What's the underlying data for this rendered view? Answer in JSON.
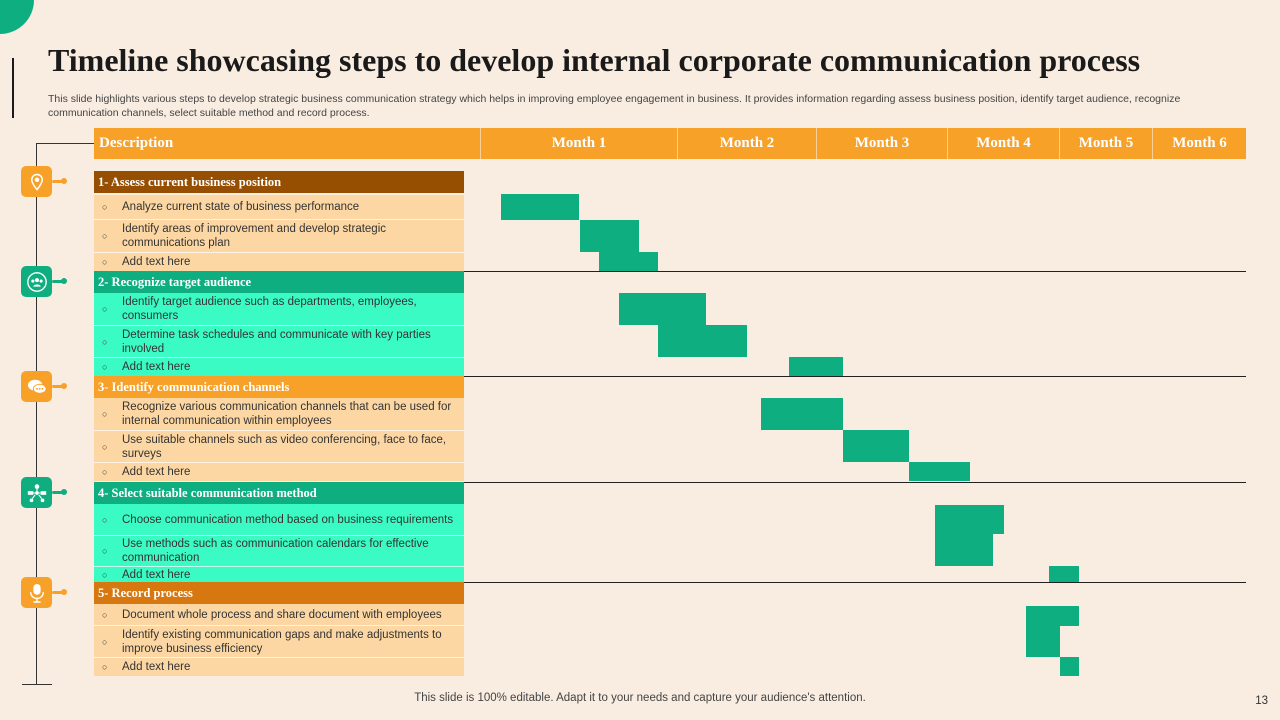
{
  "title": "Timeline showcasing steps to develop internal corporate communication process",
  "subtitle": "This slide highlights various steps to develop strategic business communication strategy which helps in improving employee engagement in business. It provides information regarding assess business position, identify target audience, recognize communication channels, select suitable method and record process.",
  "header": {
    "description": "Description",
    "months": [
      "Month 1",
      "Month 2",
      "Month 3",
      "Month 4",
      "Month 5",
      "Month 6"
    ]
  },
  "colors": {
    "accent_orange": "#F7A128",
    "accent_green": "#0FAE80",
    "background": "#F9EDE1"
  },
  "sections": [
    {
      "title": "1- Assess current business position",
      "head_color": "#964E00",
      "item_color": "#FDD7A3",
      "icon": "location-pin-icon",
      "items": [
        "Analyze  current state of business performance",
        "Identify areas of improvement and develop strategic communications plan",
        "Add text here"
      ]
    },
    {
      "title": "2- Recognize target audience",
      "head_color": "#0FAE80",
      "item_color": "#3BFBC4",
      "icon": "people-target-icon",
      "items": [
        "Identify target audience such as departments, employees, consumers",
        "Determine task schedules and communicate with key parties involved",
        "Add text here"
      ]
    },
    {
      "title": "3- Identify  communication  channels",
      "head_color": "#F7A128",
      "item_color": "#FDD7A3",
      "icon": "chat-bubbles-icon",
      "items": [
        "Recognize various communication channels that can be used for internal communication within employees",
        "Use suitable channels such as video conferencing, face to face, surveys",
        "Add text here"
      ]
    },
    {
      "title": "4- Select suitable  communication  method",
      "head_color": "#0FAE80",
      "item_color": "#3BFBC4",
      "icon": "network-people-icon",
      "items": [
        "Choose communication method based on business requirements",
        "Use methods such as communication calendars for effective communication",
        "Add text here"
      ]
    },
    {
      "title": "5- Record  process",
      "head_color": "#D7770F",
      "item_color": "#FDD7A3",
      "icon": "microphone-icon",
      "items": [
        "Document whole process and share document with employees",
        "Identify existing communication gaps and make adjustments to improve business efficiency",
        "Add text here"
      ]
    }
  ],
  "chart_data": {
    "type": "gantt",
    "title": "Timeline showcasing steps to develop internal corporate communication process",
    "xlabel": "Month",
    "categories": [
      "Month 1",
      "Month 2",
      "Month 3",
      "Month 4",
      "Month 5",
      "Month 6"
    ],
    "xlim": [
      0,
      6
    ],
    "tasks": [
      {
        "section": 1,
        "item": 1,
        "start": 0.1,
        "end": 0.5
      },
      {
        "section": 1,
        "item": 2,
        "start": 0.5,
        "end": 0.8
      },
      {
        "section": 1,
        "item": 3,
        "start": 0.6,
        "end": 0.9
      },
      {
        "section": 2,
        "item": 1,
        "start": 0.7,
        "end": 1.2
      },
      {
        "section": 2,
        "item": 2,
        "start": 0.9,
        "end": 1.5
      },
      {
        "section": 2,
        "item": 3,
        "start": 1.8,
        "end": 2.2
      },
      {
        "section": 3,
        "item": 1,
        "start": 1.6,
        "end": 2.2
      },
      {
        "section": 3,
        "item": 2,
        "start": 2.2,
        "end": 2.7
      },
      {
        "section": 3,
        "item": 3,
        "start": 2.7,
        "end": 3.2
      },
      {
        "section": 4,
        "item": 1,
        "start": 2.9,
        "end": 3.5
      },
      {
        "section": 4,
        "item": 2,
        "start": 2.9,
        "end": 3.4
      },
      {
        "section": 4,
        "item": 3,
        "start": 3.9,
        "end": 4.2
      },
      {
        "section": 5,
        "item": 1,
        "start": 3.7,
        "end": 4.2
      },
      {
        "section": 5,
        "item": 2,
        "start": 3.7,
        "end": 4.0
      },
      {
        "section": 5,
        "item": 3,
        "start": 4.0,
        "end": 4.2
      }
    ]
  },
  "footer": "This slide is 100% editable. Adapt it to your needs and capture your audience's attention.",
  "page_number": "13"
}
